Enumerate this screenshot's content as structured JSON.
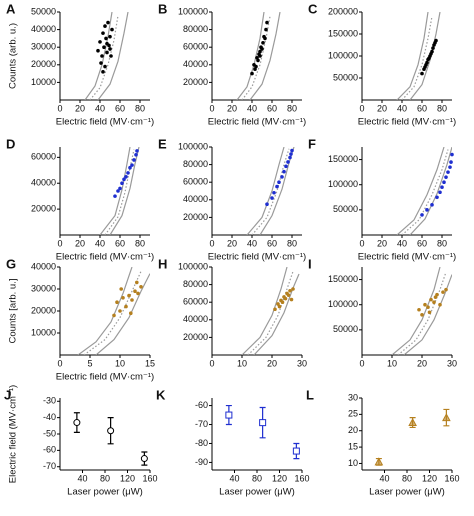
{
  "chart_data": [
    {
      "type": "scatter",
      "label": "A",
      "xlabel": "Electric field (MV·cm⁻¹)",
      "ylabel": "Counts (arb. u.)",
      "xlim": [
        0,
        90
      ],
      "xticks": [
        0,
        20,
        40,
        60,
        80
      ],
      "ylim": [
        0,
        50000
      ],
      "yticks": [
        10000,
        20000,
        30000,
        40000,
        50000
      ],
      "color": "#000000",
      "points": {
        "x": [
          38,
          40,
          42,
          43,
          44,
          45,
          46,
          47,
          48,
          49,
          50,
          51,
          52,
          41,
          45,
          47,
          43,
          50
        ],
        "y": [
          28000,
          33000,
          25000,
          38000,
          30000,
          42000,
          35000,
          27000,
          44000,
          31000,
          36000,
          25000,
          40000,
          21000,
          19000,
          32000,
          16000,
          29000
        ]
      },
      "curves": [
        {
          "x": [
            25,
            35,
            42,
            48,
            52
          ],
          "y": [
            0,
            8000,
            20000,
            36000,
            50000
          ],
          "color": "#9a9a9a",
          "dash": false
        },
        {
          "x": [
            30,
            40,
            48,
            54,
            58
          ],
          "y": [
            0,
            7000,
            20000,
            34000,
            48000
          ],
          "color": "#9a9a9a",
          "dash": true
        },
        {
          "x": [
            38,
            50,
            58,
            64,
            68
          ],
          "y": [
            0,
            9000,
            22000,
            38000,
            50000
          ],
          "color": "#9a9a9a",
          "dash": false
        }
      ]
    },
    {
      "type": "scatter",
      "label": "B",
      "xlabel": "Electric field (MV·cm⁻¹)",
      "xlim": [
        0,
        90
      ],
      "xticks": [
        0,
        20,
        40,
        60,
        80
      ],
      "ylim": [
        0,
        100000
      ],
      "yticks": [
        20000,
        40000,
        60000,
        80000,
        100000
      ],
      "color": "#000000",
      "points": {
        "x": [
          40,
          42,
          44,
          45,
          46,
          47,
          48,
          49,
          50,
          51,
          52,
          53,
          54,
          55,
          43,
          48
        ],
        "y": [
          30000,
          40000,
          38000,
          48000,
          45000,
          52000,
          55000,
          60000,
          58000,
          65000,
          72000,
          70000,
          80000,
          88000,
          35000,
          50000
        ]
      },
      "curves": [
        {
          "x": [
            25,
            35,
            42,
            48,
            52
          ],
          "y": [
            0,
            15000,
            40000,
            70000,
            100000
          ],
          "color": "#9a9a9a",
          "dash": false
        },
        {
          "x": [
            30,
            40,
            48,
            54,
            58
          ],
          "y": [
            0,
            15000,
            40000,
            70000,
            95000
          ],
          "color": "#9a9a9a",
          "dash": true
        },
        {
          "x": [
            38,
            50,
            58,
            64,
            68
          ],
          "y": [
            0,
            18000,
            45000,
            75000,
            100000
          ],
          "color": "#9a9a9a",
          "dash": false
        }
      ]
    },
    {
      "type": "scatter",
      "label": "C",
      "xlabel": "Electric field (MV·cm⁻¹)",
      "xlim": [
        0,
        90
      ],
      "xticks": [
        0,
        20,
        40,
        60,
        80
      ],
      "ylim": [
        0,
        200000
      ],
      "yticks": [
        50000,
        100000,
        150000,
        200000
      ],
      "color": "#000000",
      "points": {
        "x": [
          60,
          62,
          63,
          64,
          65,
          66,
          67,
          68,
          69,
          70,
          71,
          72,
          73,
          74
        ],
        "y": [
          60000,
          70000,
          75000,
          80000,
          85000,
          92000,
          95000,
          100000,
          105000,
          110000,
          118000,
          125000,
          130000,
          135000
        ]
      },
      "curves": [
        {
          "x": [
            35,
            48,
            56,
            62,
            66
          ],
          "y": [
            0,
            30000,
            80000,
            140000,
            200000
          ],
          "color": "#9a9a9a",
          "dash": false
        },
        {
          "x": [
            40,
            52,
            60,
            66,
            70
          ],
          "y": [
            0,
            30000,
            80000,
            140000,
            190000
          ],
          "color": "#9a9a9a",
          "dash": true
        },
        {
          "x": [
            48,
            60,
            68,
            74,
            78
          ],
          "y": [
            0,
            35000,
            90000,
            150000,
            200000
          ],
          "color": "#9a9a9a",
          "dash": false
        }
      ]
    },
    {
      "type": "scatter",
      "label": "D",
      "xlabel": "Electric field (MV·cm⁻¹)",
      "xlim": [
        0,
        90
      ],
      "xticks": [
        0,
        20,
        40,
        60,
        80
      ],
      "ylim": [
        0,
        68000
      ],
      "yticks": [
        20000,
        40000,
        60000
      ],
      "color": "#1f2fd0",
      "points": {
        "x": [
          55,
          58,
          60,
          62,
          64,
          66,
          68,
          70,
          72,
          74,
          76,
          77
        ],
        "y": [
          30000,
          34000,
          36000,
          40000,
          43000,
          45000,
          48000,
          52000,
          54000,
          58000,
          62000,
          65000
        ]
      },
      "curves": [
        {
          "x": [
            40,
            55,
            62,
            67,
            70
          ],
          "y": [
            0,
            15000,
            35000,
            55000,
            68000
          ],
          "color": "#9a9a9a",
          "dash": false
        },
        {
          "x": [
            45,
            58,
            65,
            70,
            74
          ],
          "y": [
            0,
            14000,
            33000,
            52000,
            66000
          ],
          "color": "#9a9a9a",
          "dash": true
        },
        {
          "x": [
            50,
            62,
            70,
            75,
            79
          ],
          "y": [
            0,
            15000,
            36000,
            55000,
            68000
          ],
          "color": "#9a9a9a",
          "dash": false
        }
      ]
    },
    {
      "type": "scatter",
      "label": "E",
      "xlabel": "Electric field (MV·cm⁻¹)",
      "xlim": [
        0,
        90
      ],
      "xticks": [
        0,
        20,
        40,
        60,
        80
      ],
      "ylim": [
        0,
        100000
      ],
      "yticks": [
        20000,
        40000,
        60000,
        80000,
        100000
      ],
      "color": "#1f2fd0",
      "points": {
        "x": [
          55,
          60,
          62,
          65,
          67,
          70,
          72,
          74,
          76,
          78,
          79,
          80
        ],
        "y": [
          35000,
          42000,
          48000,
          55000,
          60000,
          66000,
          72000,
          78000,
          83000,
          88000,
          92000,
          96000
        ]
      },
      "curves": [
        {
          "x": [
            35,
            50,
            60,
            67,
            72
          ],
          "y": [
            0,
            20000,
            50000,
            80000,
            100000
          ],
          "color": "#9a9a9a",
          "dash": false
        },
        {
          "x": [
            40,
            55,
            65,
            72,
            77
          ],
          "y": [
            0,
            20000,
            50000,
            80000,
            98000
          ],
          "color": "#9a9a9a",
          "dash": true
        },
        {
          "x": [
            48,
            60,
            70,
            77,
            82
          ],
          "y": [
            0,
            22000,
            52000,
            82000,
            100000
          ],
          "color": "#9a9a9a",
          "dash": false
        }
      ]
    },
    {
      "type": "scatter",
      "label": "F",
      "xlabel": "Electric field (MV·cm⁻¹)",
      "xlim": [
        0,
        90
      ],
      "xticks": [
        0,
        20,
        40,
        60,
        80
      ],
      "ylim": [
        0,
        175000
      ],
      "yticks": [
        50000,
        100000,
        150000
      ],
      "color": "#1f2fd0",
      "points": {
        "x": [
          60,
          65,
          70,
          75,
          78,
          80,
          82,
          84,
          86,
          88,
          89,
          90
        ],
        "y": [
          40000,
          50000,
          60000,
          75000,
          85000,
          95000,
          105000,
          115000,
          125000,
          135000,
          145000,
          160000
        ]
      },
      "curves": [
        {
          "x": [
            35,
            52,
            65,
            75,
            82
          ],
          "y": [
            0,
            30000,
            80000,
            130000,
            175000
          ],
          "color": "#9a9a9a",
          "dash": false
        },
        {
          "x": [
            40,
            57,
            70,
            80,
            86
          ],
          "y": [
            0,
            30000,
            80000,
            130000,
            170000
          ],
          "color": "#9a9a9a",
          "dash": true
        },
        {
          "x": [
            48,
            63,
            75,
            85,
            90
          ],
          "y": [
            0,
            32000,
            82000,
            140000,
            175000
          ],
          "color": "#9a9a9a",
          "dash": false
        }
      ]
    },
    {
      "type": "scatter",
      "label": "G",
      "xlabel": "Electric field (MV·cm⁻¹)",
      "ylabel": "Counts [arb. u.]",
      "xlim": [
        0,
        15
      ],
      "xticks": [
        0,
        5,
        10,
        15
      ],
      "ylim": [
        0,
        40000
      ],
      "yticks": [
        10000,
        20000,
        30000,
        40000
      ],
      "color": "#b5801f",
      "points": {
        "x": [
          9,
          9.5,
          10,
          10.5,
          11,
          11.5,
          12,
          12.5,
          13,
          13.5,
          10.2,
          11.8,
          12.8
        ],
        "y": [
          18000,
          24000,
          20000,
          26000,
          22000,
          27000,
          25000,
          29000,
          28000,
          31000,
          30000,
          19000,
          33000
        ]
      },
      "curves": [
        {
          "x": [
            3,
            6,
            8.5,
            10.5,
            12
          ],
          "y": [
            0,
            6000,
            15000,
            28000,
            40000
          ],
          "color": "#9a9a9a",
          "dash": false
        },
        {
          "x": [
            4,
            7.5,
            10,
            12,
            13.5
          ],
          "y": [
            0,
            7000,
            17000,
            29000,
            38000
          ],
          "color": "#9a9a9a",
          "dash": true
        },
        {
          "x": [
            6,
            9,
            11.5,
            13.5,
            15
          ],
          "y": [
            0,
            7000,
            17000,
            29000,
            37000
          ],
          "color": "#9a9a9a",
          "dash": false
        }
      ]
    },
    {
      "type": "scatter",
      "label": "H",
      "xlim": [
        0,
        30
      ],
      "xticks": [
        0,
        10,
        20,
        30
      ],
      "ylim": [
        0,
        100000
      ],
      "yticks": [
        20000,
        40000,
        60000,
        80000,
        100000
      ],
      "color": "#b5801f",
      "points": {
        "x": [
          21,
          22,
          22.5,
          23,
          23.5,
          24,
          24.5,
          25,
          25.5,
          26,
          26.5,
          27
        ],
        "y": [
          52000,
          58000,
          55000,
          62000,
          60000,
          66000,
          64000,
          70000,
          68000,
          73000,
          63000,
          75000
        ]
      },
      "curves": [
        {
          "x": [
            10,
            16,
            20,
            23,
            25
          ],
          "y": [
            0,
            20000,
            45000,
            75000,
            100000
          ],
          "color": "#9a9a9a",
          "dash": false
        },
        {
          "x": [
            12,
            18,
            22,
            25,
            27
          ],
          "y": [
            0,
            20000,
            45000,
            75000,
            95000
          ],
          "color": "#9a9a9a",
          "dash": true
        },
        {
          "x": [
            14,
            20,
            24,
            27,
            29
          ],
          "y": [
            0,
            22000,
            48000,
            76000,
            92000
          ],
          "color": "#9a9a9a",
          "dash": false
        }
      ]
    },
    {
      "type": "scatter",
      "label": "I",
      "xlim": [
        0,
        30
      ],
      "xticks": [
        0,
        10,
        20,
        30
      ],
      "ylim": [
        0,
        175000
      ],
      "yticks": [
        50000,
        100000,
        150000
      ],
      "color": "#b5801f",
      "points": {
        "x": [
          19,
          20,
          21,
          22,
          23,
          24,
          25,
          26,
          27,
          28,
          22.5,
          24.5
        ],
        "y": [
          90000,
          80000,
          100000,
          95000,
          110000,
          105000,
          120000,
          100000,
          125000,
          130000,
          85000,
          115000
        ]
      },
      "curves": [
        {
          "x": [
            10,
            16,
            20,
            24,
            26
          ],
          "y": [
            0,
            30000,
            70000,
            130000,
            175000
          ],
          "color": "#9a9a9a",
          "dash": false
        },
        {
          "x": [
            12,
            18,
            22,
            26,
            28
          ],
          "y": [
            0,
            30000,
            70000,
            130000,
            165000
          ],
          "color": "#9a9a9a",
          "dash": true
        },
        {
          "x": [
            14,
            20,
            24,
            27.5,
            30
          ],
          "y": [
            0,
            30000,
            70000,
            120000,
            160000
          ],
          "color": "#9a9a9a",
          "dash": false
        }
      ]
    },
    {
      "type": "errorbar",
      "label": "J",
      "xlabel": "Laser power (μW)",
      "ylabel": "Electric field (MV·cm⁻¹)",
      "xlim": [
        0,
        160
      ],
      "xticks": [
        40,
        80,
        120,
        160
      ],
      "ylim": [
        -72,
        -28
      ],
      "yticks": [
        -30,
        -40,
        -50,
        -60,
        -70
      ],
      "color": "#000000",
      "marker": "circle",
      "x": [
        30,
        90,
        150
      ],
      "values": [
        -43,
        -48,
        -65
      ],
      "errors": [
        6,
        8,
        4
      ]
    },
    {
      "type": "errorbar",
      "label": "K",
      "xlabel": "Laser power (μW)",
      "xlim": [
        0,
        160
      ],
      "xticks": [
        40,
        80,
        120,
        160
      ],
      "ylim": [
        -94,
        -56
      ],
      "yticks": [
        -60,
        -70,
        -80,
        -90
      ],
      "color": "#1f2fd0",
      "marker": "square",
      "x": [
        30,
        90,
        150
      ],
      "values": [
        -65,
        -69,
        -84
      ],
      "errors": [
        5,
        8,
        4
      ]
    },
    {
      "type": "errorbar",
      "label": "L",
      "xlabel": "Laser power (μW)",
      "xlim": [
        0,
        160
      ],
      "xticks": [
        40,
        80,
        120,
        160
      ],
      "ylim": [
        8,
        30
      ],
      "yticks": [
        10,
        15,
        20,
        25,
        30
      ],
      "color": "#b5801f",
      "marker": "triangle",
      "x": [
        30,
        90,
        150
      ],
      "values": [
        10.5,
        22.5,
        24
      ],
      "errors": [
        1,
        1.5,
        2.5
      ]
    }
  ]
}
